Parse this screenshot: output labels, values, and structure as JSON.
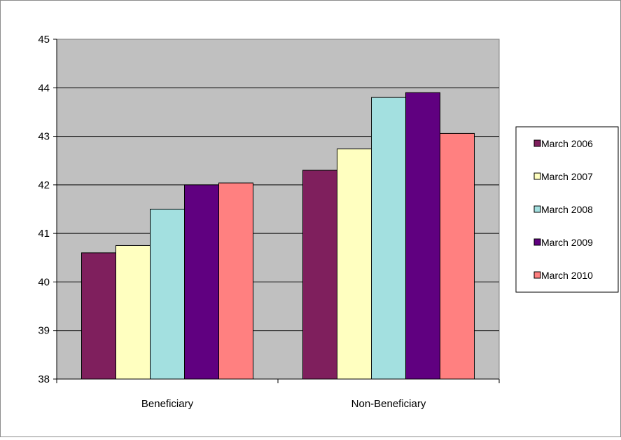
{
  "chart_data": {
    "type": "bar",
    "categories": [
      "Beneficiary",
      "Non-Beneficiary"
    ],
    "series": [
      {
        "name": "March 2006",
        "values": [
          40.6,
          42.3
        ],
        "color": "#7f1f5d"
      },
      {
        "name": "March 2007",
        "values": [
          40.75,
          42.74
        ],
        "color": "#ffffc0"
      },
      {
        "name": "March 2008",
        "values": [
          41.5,
          43.8
        ],
        "color": "#a3e0e0"
      },
      {
        "name": "March 2009",
        "values": [
          42.0,
          43.9
        ],
        "color": "#600080"
      },
      {
        "name": "March 2010",
        "values": [
          42.04,
          43.06
        ],
        "color": "#ff8080"
      }
    ],
    "title": "",
    "xlabel": "",
    "ylabel": "",
    "ylim": [
      38,
      45
    ],
    "yticks": [
      "38",
      "39",
      "40",
      "41",
      "42",
      "43",
      "44",
      "45"
    ],
    "plot_background": "#c0c0c0",
    "gridlines": true,
    "legend": "right"
  }
}
